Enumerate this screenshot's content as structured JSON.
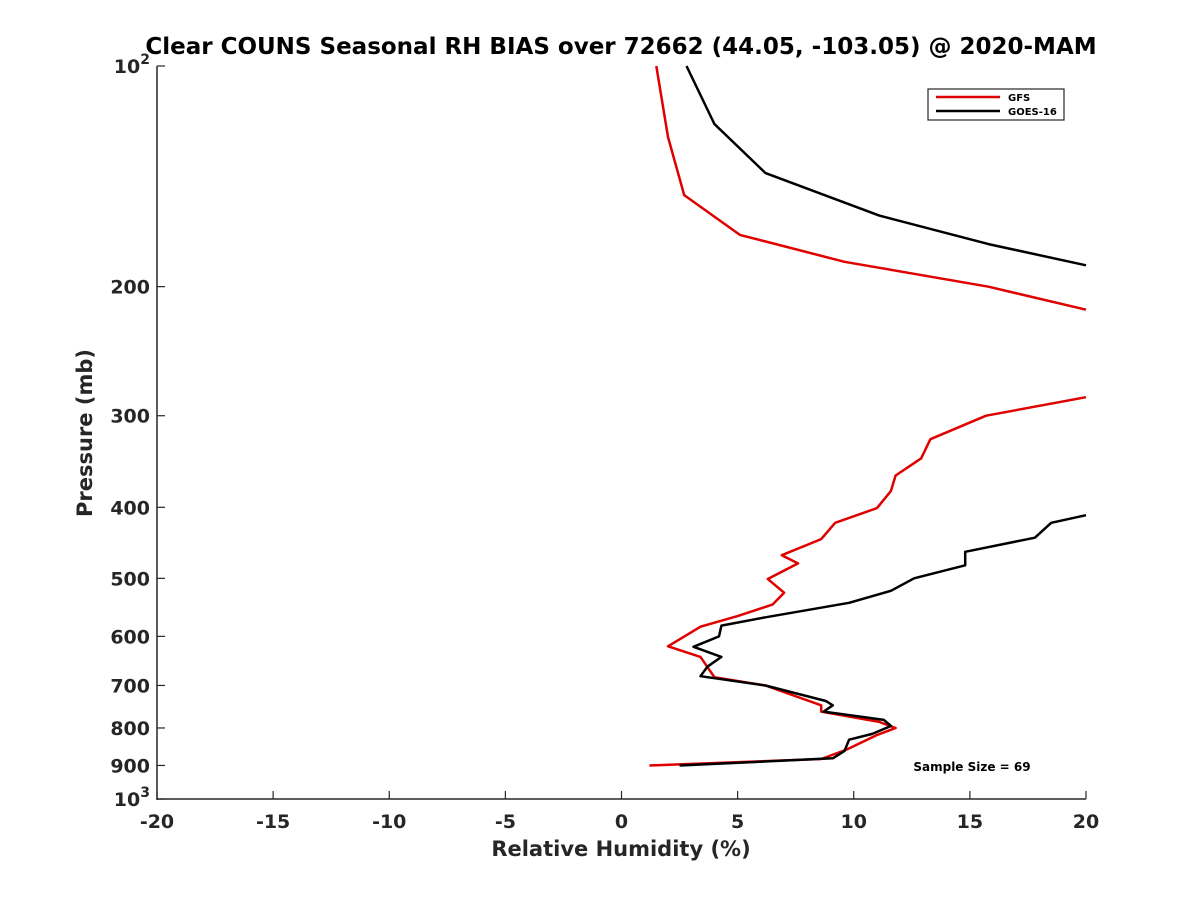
{
  "chart_data": {
    "type": "line",
    "title": "Clear COUNS Seasonal RH BIAS over 72662 (44.05, -103.05) @ 2020-MAM",
    "xlabel": "Relative Humidity (%)",
    "ylabel": "Pressure (mb)",
    "xlim": [
      -20,
      20
    ],
    "ylim": [
      100,
      1000
    ],
    "yscale": "log",
    "yreversed": true,
    "x_ticks": [
      -20,
      -15,
      -10,
      -5,
      0,
      5,
      10,
      15,
      20
    ],
    "x_tick_labels": [
      "-20",
      "-15",
      "-10",
      "-5",
      "0",
      "5",
      "10",
      "15",
      "20"
    ],
    "y_ticks": [
      100,
      200,
      300,
      400,
      500,
      600,
      700,
      800,
      900,
      1000
    ],
    "y_tick_labels": [
      {
        "base": "10",
        "exp": "2"
      },
      {
        "base": "200",
        "exp": ""
      },
      {
        "base": "300",
        "exp": ""
      },
      {
        "base": "400",
        "exp": ""
      },
      {
        "base": "500",
        "exp": ""
      },
      {
        "base": "600",
        "exp": ""
      },
      {
        "base": "700",
        "exp": ""
      },
      {
        "base": "800",
        "exp": ""
      },
      {
        "base": "900",
        "exp": ""
      },
      {
        "base": "10",
        "exp": "3"
      }
    ],
    "legend_position": "top-right",
    "annotation": "Sample Size = 69",
    "series": [
      {
        "name": "GFS",
        "color": "#e00000",
        "segments": [
          {
            "x": [
              1.5,
              2.0,
              2.7,
              5.1,
              9.6,
              15.8,
              20.0
            ],
            "y": [
              100,
              125,
              150,
              170,
              185,
              200,
              215
            ]
          },
          {
            "x": [
              20.0,
              15.7,
              13.3,
              12.9,
              11.8,
              11.6,
              11.0,
              9.2,
              8.6,
              6.9,
              7.6,
              6.3,
              7.0,
              6.5,
              5.0,
              3.4,
              2.0,
              3.4,
              4.0,
              6.2,
              8.6,
              8.6,
              11.1,
              11.8,
              11.0,
              9.7,
              8.6,
              1.2
            ],
            "y": [
              283,
              300,
              323,
              343,
              362,
              380,
              401,
              420,
              442,
              465,
              477,
              501,
              523,
              543,
              563,
              582,
              619,
              640,
              682,
              700,
              745,
              760,
              785,
              800,
              818,
              856,
              882,
              900
            ]
          }
        ]
      },
      {
        "name": "GOES-16",
        "color": "#000000",
        "segments": [
          {
            "x": [
              2.8,
              4.0,
              6.2,
              11.1,
              15.8,
              20.0
            ],
            "y": [
              100,
              120,
              140,
              160,
              175,
              187
            ]
          },
          {
            "x": [
              20.0,
              18.5,
              17.8,
              14.8,
              14.8,
              12.6,
              11.6,
              9.8,
              6.2,
              4.3,
              4.2,
              3.1,
              4.3,
              3.7,
              3.4,
              6.2,
              8.8,
              9.1,
              8.7,
              11.3,
              11.6,
              10.8,
              9.8,
              9.6,
              9.1,
              2.5
            ],
            "y": [
              410,
              420,
              440,
              460,
              480,
              500,
              520,
              540,
              565,
              580,
              600,
              620,
              640,
              660,
              680,
              700,
              735,
              745,
              760,
              780,
              795,
              815,
              830,
              860,
              880,
              900
            ]
          }
        ]
      }
    ]
  }
}
